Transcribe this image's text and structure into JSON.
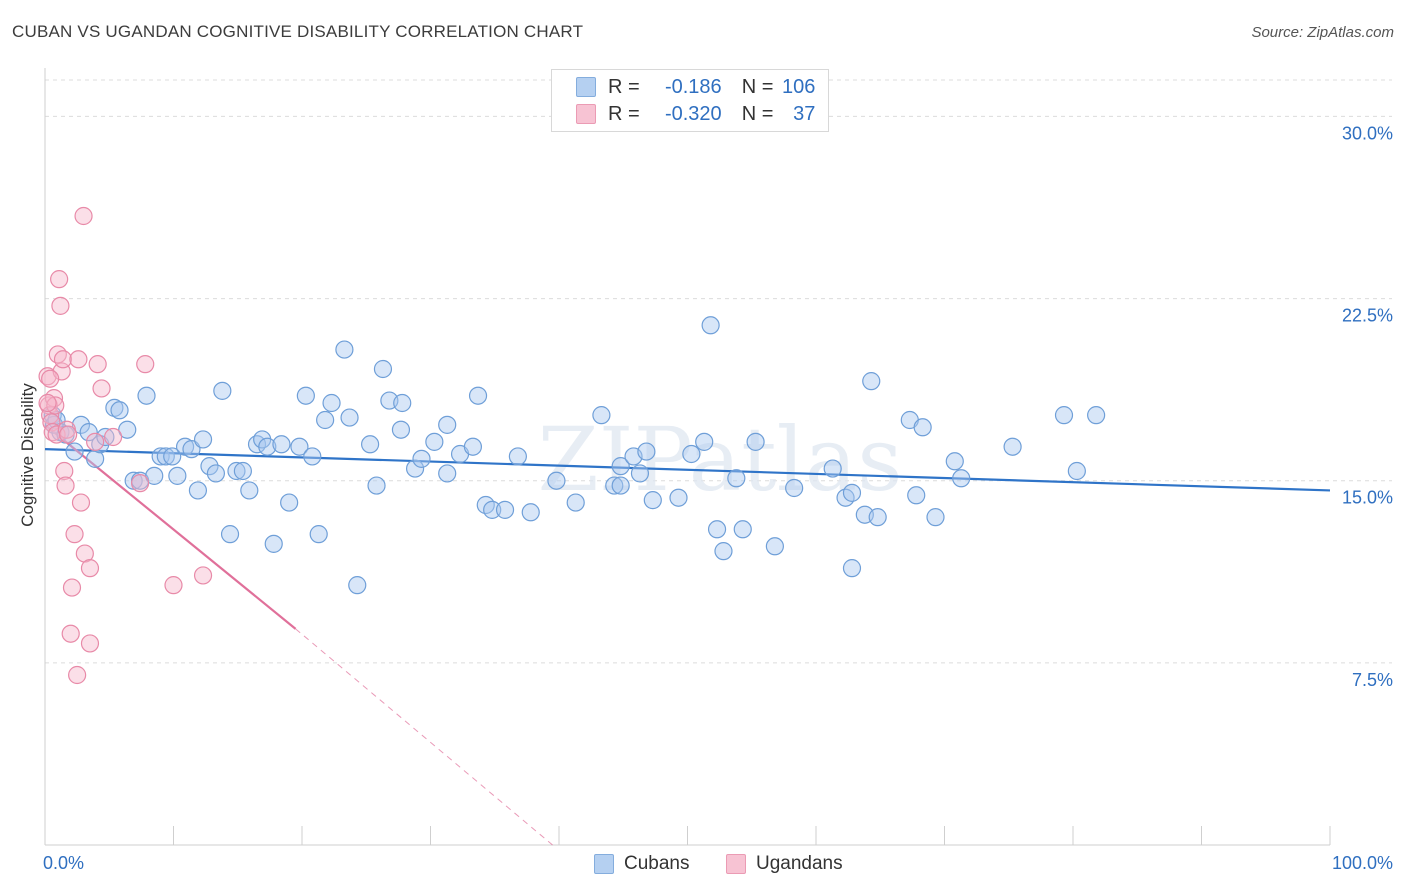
{
  "title": "CUBAN VS UGANDAN COGNITIVE DISABILITY CORRELATION CHART",
  "source": "Source: ZipAtlas.com",
  "watermark": "ZIPatlas",
  "legend": {
    "r_label": "R =",
    "n_label": "N =",
    "cubans": {
      "r": "-0.186",
      "n": "106"
    },
    "ugandans": {
      "r": "-0.320",
      "n": "37"
    }
  },
  "colors": {
    "cubans_fill": "#a9c8ef",
    "cubans_stroke": "#6f9fd8",
    "cubans_line": "#2f74c8",
    "ugandans_fill": "#f6b9cc",
    "ugandans_stroke": "#e88aa8",
    "ugandans_line": "#e0709a",
    "axis_label": "#2f6fc0"
  },
  "chart_data": {
    "type": "scatter",
    "title": "CUBAN VS UGANDAN COGNITIVE DISABILITY CORRELATION CHART",
    "xlabel": "",
    "ylabel": "Cognitive Disability",
    "xlim": [
      0,
      100
    ],
    "ylim": [
      0,
      31.5
    ],
    "x_tick_labels": [
      "0.0%",
      "100.0%"
    ],
    "y_ticks": [
      7.5,
      15.0,
      22.5,
      30.0
    ],
    "y_tick_labels": [
      "7.5%",
      "15.0%",
      "22.5%",
      "30.0%"
    ],
    "grid": true,
    "legend_position": "top-center",
    "series": [
      {
        "name": "Cubans",
        "trend": {
          "x": [
            0,
            100
          ],
          "y": [
            16.3,
            14.6
          ]
        },
        "points": [
          [
            0.6,
            17.7
          ],
          [
            0.7,
            17.3
          ],
          [
            0.9,
            17.5
          ],
          [
            1.2,
            17.0
          ],
          [
            1.6,
            16.9
          ],
          [
            2.3,
            16.2
          ],
          [
            2.8,
            17.3
          ],
          [
            3.4,
            17.0
          ],
          [
            3.9,
            15.9
          ],
          [
            4.3,
            16.5
          ],
          [
            4.7,
            16.8
          ],
          [
            5.4,
            18.0
          ],
          [
            5.8,
            17.9
          ],
          [
            6.4,
            17.1
          ],
          [
            6.9,
            15.0
          ],
          [
            7.4,
            15.0
          ],
          [
            7.9,
            18.5
          ],
          [
            8.5,
            15.2
          ],
          [
            9.0,
            16.0
          ],
          [
            9.4,
            16.0
          ],
          [
            9.9,
            16.0
          ],
          [
            10.3,
            15.2
          ],
          [
            10.9,
            16.4
          ],
          [
            11.4,
            16.3
          ],
          [
            11.9,
            14.6
          ],
          [
            12.3,
            16.7
          ],
          [
            12.8,
            15.6
          ],
          [
            13.3,
            15.3
          ],
          [
            13.8,
            18.7
          ],
          [
            14.4,
            12.8
          ],
          [
            14.9,
            15.4
          ],
          [
            15.4,
            15.4
          ],
          [
            15.9,
            14.6
          ],
          [
            16.5,
            16.5
          ],
          [
            16.9,
            16.7
          ],
          [
            17.3,
            16.4
          ],
          [
            17.8,
            12.4
          ],
          [
            18.4,
            16.5
          ],
          [
            19.0,
            14.1
          ],
          [
            19.8,
            16.4
          ],
          [
            20.3,
            18.5
          ],
          [
            20.8,
            16.0
          ],
          [
            21.3,
            12.8
          ],
          [
            21.8,
            17.5
          ],
          [
            22.3,
            18.2
          ],
          [
            23.3,
            20.4
          ],
          [
            23.7,
            17.6
          ],
          [
            24.3,
            10.7
          ],
          [
            25.3,
            16.5
          ],
          [
            25.8,
            14.8
          ],
          [
            26.3,
            19.6
          ],
          [
            26.8,
            18.3
          ],
          [
            27.8,
            18.2
          ],
          [
            27.7,
            17.1
          ],
          [
            28.8,
            15.5
          ],
          [
            29.3,
            15.9
          ],
          [
            30.3,
            16.6
          ],
          [
            31.3,
            17.3
          ],
          [
            31.3,
            15.3
          ],
          [
            32.3,
            16.1
          ],
          [
            33.3,
            16.4
          ],
          [
            33.7,
            18.5
          ],
          [
            34.3,
            14.0
          ],
          [
            34.8,
            13.8
          ],
          [
            35.8,
            13.8
          ],
          [
            36.8,
            16.0
          ],
          [
            37.8,
            13.7
          ],
          [
            39.8,
            15.0
          ],
          [
            41.3,
            14.1
          ],
          [
            43.3,
            17.7
          ],
          [
            44.3,
            14.8
          ],
          [
            44.8,
            15.6
          ],
          [
            44.8,
            14.8
          ],
          [
            45.8,
            16.0
          ],
          [
            46.3,
            15.3
          ],
          [
            46.8,
            16.2
          ],
          [
            47.3,
            14.2
          ],
          [
            49.3,
            14.3
          ],
          [
            50.3,
            16.1
          ],
          [
            51.3,
            16.6
          ],
          [
            51.8,
            21.4
          ],
          [
            52.3,
            13.0
          ],
          [
            52.8,
            12.1
          ],
          [
            53.8,
            15.1
          ],
          [
            54.3,
            13.0
          ],
          [
            55.3,
            16.6
          ],
          [
            56.8,
            12.3
          ],
          [
            58.3,
            14.7
          ],
          [
            61.3,
            15.5
          ],
          [
            62.3,
            14.3
          ],
          [
            62.8,
            14.5
          ],
          [
            62.8,
            11.4
          ],
          [
            63.8,
            13.6
          ],
          [
            64.3,
            19.1
          ],
          [
            64.8,
            13.5
          ],
          [
            67.3,
            17.5
          ],
          [
            67.8,
            14.4
          ],
          [
            68.3,
            17.2
          ],
          [
            69.3,
            13.5
          ],
          [
            70.8,
            15.8
          ],
          [
            71.3,
            15.1
          ],
          [
            75.3,
            16.4
          ],
          [
            79.3,
            17.7
          ],
          [
            80.3,
            15.4
          ],
          [
            81.8,
            17.7
          ]
        ]
      },
      {
        "name": "Ugandans",
        "trend": {
          "x": [
            0,
            19.5
          ],
          "y": [
            17.3,
            8.9
          ]
        },
        "trend_extension": {
          "x": [
            19.5,
            39.5
          ],
          "y": [
            8.9,
            0
          ]
        },
        "points": [
          [
            0.2,
            19.3
          ],
          [
            0.3,
            18.1
          ],
          [
            0.4,
            17.7
          ],
          [
            0.5,
            17.4
          ],
          [
            0.6,
            17.0
          ],
          [
            0.7,
            18.4
          ],
          [
            0.8,
            18.1
          ],
          [
            0.9,
            16.9
          ],
          [
            1.0,
            20.2
          ],
          [
            1.1,
            23.3
          ],
          [
            1.2,
            22.2
          ],
          [
            1.3,
            19.5
          ],
          [
            1.4,
            20.0
          ],
          [
            1.5,
            15.4
          ],
          [
            1.6,
            14.8
          ],
          [
            1.7,
            17.1
          ],
          [
            2.1,
            10.6
          ],
          [
            2.0,
            8.7
          ],
          [
            2.3,
            12.8
          ],
          [
            2.5,
            7.0
          ],
          [
            2.6,
            20.0
          ],
          [
            2.8,
            14.1
          ],
          [
            3.0,
            25.9
          ],
          [
            3.1,
            12.0
          ],
          [
            3.5,
            11.4
          ],
          [
            3.5,
            8.3
          ],
          [
            3.9,
            16.6
          ],
          [
            4.1,
            19.8
          ],
          [
            4.4,
            18.8
          ],
          [
            5.3,
            16.8
          ],
          [
            7.4,
            14.9
          ],
          [
            7.8,
            19.8
          ],
          [
            10.0,
            10.7
          ],
          [
            12.3,
            11.1
          ],
          [
            1.8,
            16.9
          ],
          [
            0.2,
            18.2
          ],
          [
            0.4,
            19.2
          ]
        ]
      }
    ]
  }
}
